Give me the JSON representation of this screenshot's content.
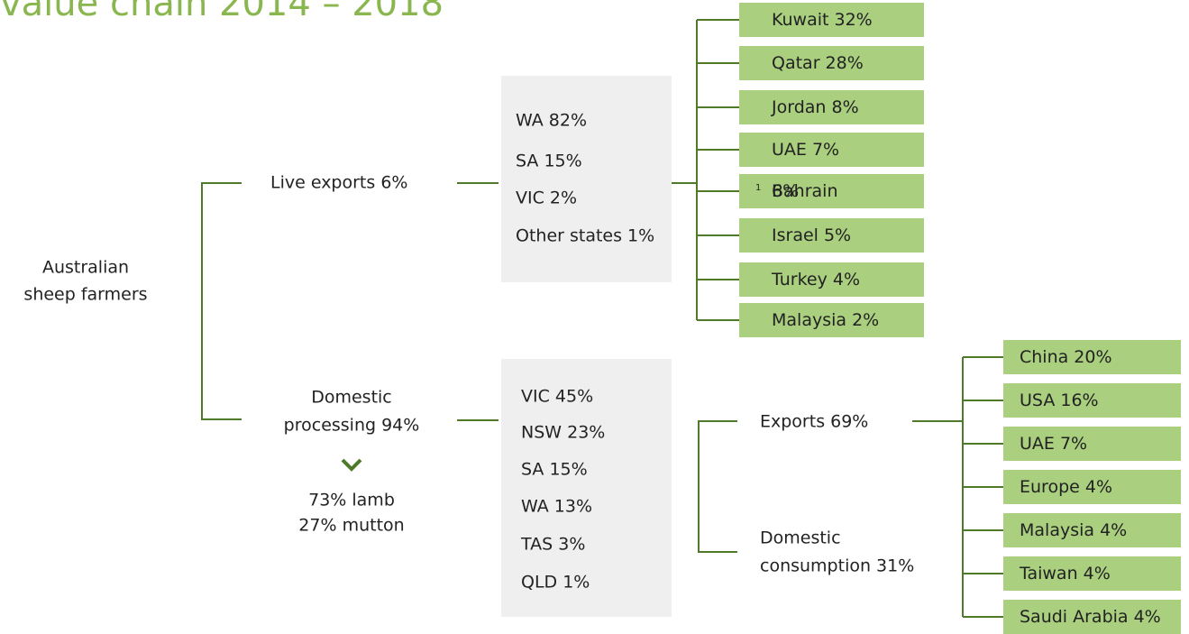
{
  "title": "value chain 2014 – 2018",
  "root": [
    "Australian",
    "sheep farmers"
  ],
  "live_exports": {
    "label": "Live exports 6%",
    "states": [
      "WA 82%",
      "SA 15%",
      "VIC 2%",
      "Other states 1%"
    ],
    "destinations": [
      {
        "name": "Kuwait 32%"
      },
      {
        "name": "Qatar 28%"
      },
      {
        "name": "Jordan 8%"
      },
      {
        "name": "UAE 7%"
      },
      {
        "name": "Bahrain",
        "footnote": "1",
        "share": "6%"
      },
      {
        "name": "Israel 5%"
      },
      {
        "name": "Turkey 4%"
      },
      {
        "name": "Malaysia 2%"
      }
    ]
  },
  "domestic_processing": {
    "label": [
      "Domestic",
      "processing 94%"
    ],
    "split": [
      "73% lamb",
      "27% mutton"
    ],
    "states": [
      "VIC 45%",
      "NSW 23%",
      "SA 15%",
      "WA 13%",
      "TAS 3%",
      "QLD 1%"
    ],
    "exports": {
      "label": "Exports 69%",
      "destinations": [
        "China 20%",
        "USA 16%",
        "UAE 7%",
        "Europe 4%",
        "Malaysia 4%",
        "Taiwan 4%",
        "Saudi Arabia 4%"
      ]
    },
    "domestic_consumption": [
      "Domestic",
      "consumption 31%"
    ]
  }
}
